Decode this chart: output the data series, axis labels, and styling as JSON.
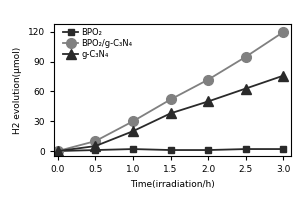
{
  "x": [
    0.0,
    0.5,
    1.0,
    1.5,
    2.0,
    2.5,
    3.0
  ],
  "bpo2": [
    0,
    1,
    2,
    1,
    1,
    2,
    2
  ],
  "bpo2_gcn4": [
    0,
    10,
    30,
    52,
    72,
    95,
    120
  ],
  "gcn4": [
    0,
    5,
    20,
    38,
    50,
    63,
    76
  ],
  "ylabel": "H2 evolution(μmol)",
  "xlabel": "Time(irradiation/h)",
  "ylim": [
    -5,
    128
  ],
  "xlim": [
    -0.05,
    3.1
  ],
  "yticks": [
    0,
    30,
    60,
    90,
    120
  ],
  "xticks": [
    0.0,
    0.5,
    1.0,
    1.5,
    2.0,
    2.5,
    3.0
  ],
  "legend_bpo2": "BPO₂",
  "legend_bpo2_gcn4": "BPO₂/g-C₃N₄",
  "legend_gcn4": "g-C₃N₄",
  "color_dark": "#2a2a2a",
  "color_gray": "#808080",
  "marker_size_sq": 5,
  "marker_size_circ": 7,
  "marker_size_tri": 7,
  "linewidth": 1.3
}
